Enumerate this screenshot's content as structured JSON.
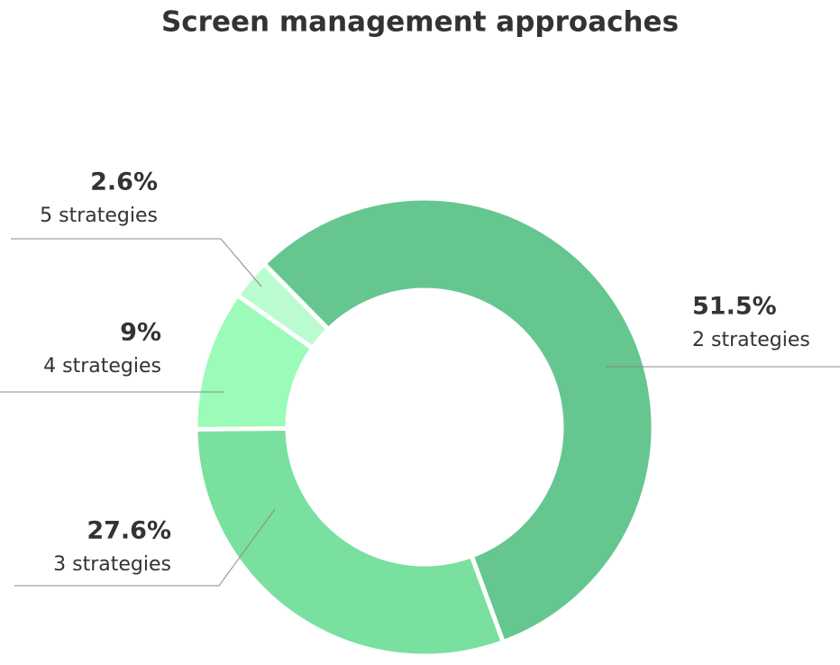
{
  "chart_data": {
    "type": "donut",
    "title": "Screen management approaches",
    "categories": [
      "2 strategies",
      "3 strategies",
      "4 strategies",
      "5 strategies"
    ],
    "values": [
      51.5,
      27.6,
      9,
      2.6
    ],
    "value_labels": [
      "51.5%",
      "27.6%",
      "9%",
      "2.6%"
    ],
    "colors": [
      "#66c690",
      "#79e09f",
      "#9bfbb8",
      "#bbfbd0"
    ]
  }
}
